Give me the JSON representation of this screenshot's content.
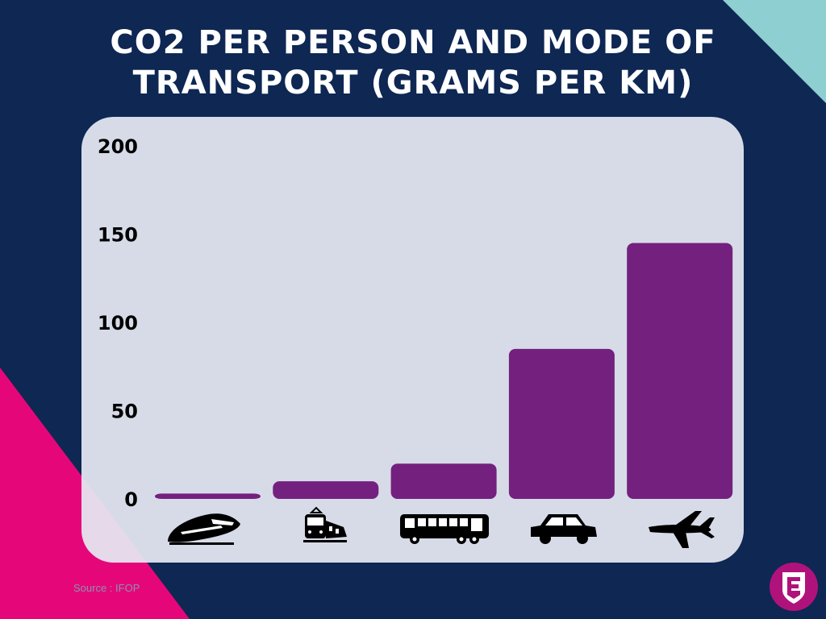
{
  "title_lines": [
    "CO2 PER PERSON AND MODE OF",
    "TRANSPORT (GRAMS PER KM)"
  ],
  "source": "Source : IFOP",
  "colors": {
    "background": "#0e2753",
    "bar": "#74207f",
    "accent_teal": "#8ecfd1",
    "accent_pink": "#e5077a"
  },
  "chart_data": {
    "type": "bar",
    "title": "CO2 PER PERSON AND MODE OF TRANSPORT (GRAMS PER KM)",
    "categories": [
      "high-speed-train",
      "tram",
      "bus",
      "car",
      "plane"
    ],
    "category_icons": [
      "high-speed-train-icon",
      "tram-icon",
      "bus-icon",
      "car-icon",
      "plane-icon"
    ],
    "values": [
      3,
      10,
      20,
      85,
      145
    ],
    "ylim": [
      0,
      200
    ],
    "yticks": [
      0,
      50,
      100,
      150,
      200
    ],
    "xlabel": "",
    "ylabel": "",
    "grid": false
  }
}
